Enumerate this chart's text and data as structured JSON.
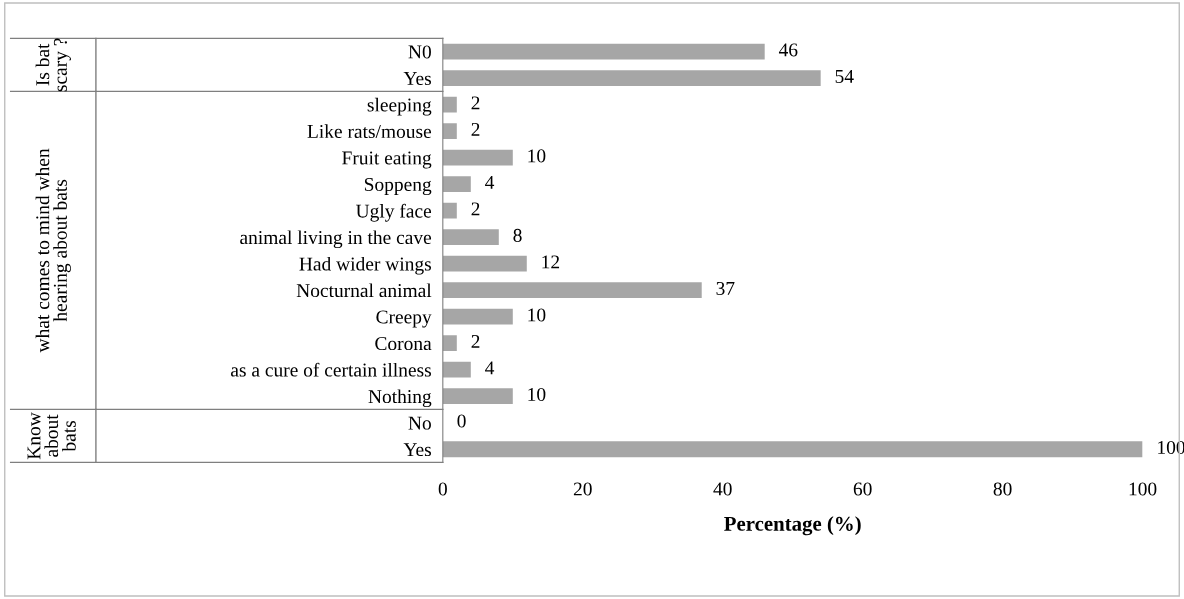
{
  "chart_data": {
    "type": "bar",
    "orientation": "horizontal",
    "xlabel": "Percentage (%)",
    "categories": [
      "N0",
      "Yes",
      "sleeping",
      "Like rats/mouse",
      "Fruit eating",
      "Soppeng",
      "Ugly face",
      "animal living in the cave",
      "Had wider wings",
      "Nocturnal animal",
      "Creepy",
      "Corona",
      "as a cure of certain illness",
      "Nothing",
      "No",
      "Yes"
    ],
    "values": [
      46,
      54,
      2,
      2,
      10,
      4,
      2,
      8,
      12,
      37,
      10,
      2,
      4,
      10,
      0,
      100
    ],
    "color": "#a6a6a6",
    "data_labels": true,
    "xlim": [
      0,
      100
    ],
    "xticks": [
      0,
      20,
      40,
      60,
      80,
      100
    ],
    "grid": false,
    "legend": false,
    "annotations": [
      "Is bat scary ?",
      "what comes to mind when hearing about bats",
      "Know about bats"
    ]
  }
}
